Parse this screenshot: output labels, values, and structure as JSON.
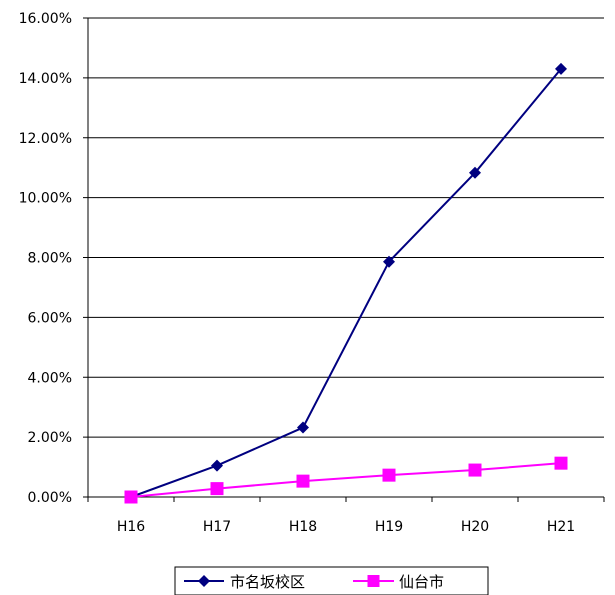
{
  "chart_data": {
    "type": "line",
    "categories": [
      "H16",
      "H17",
      "H18",
      "H19",
      "H20",
      "H21"
    ],
    "ylim": [
      0,
      0.16
    ],
    "ytick_values": [
      0,
      0.02,
      0.04,
      0.06,
      0.08,
      0.1,
      0.12,
      0.14,
      0.16
    ],
    "ytick_labels": [
      "0.00%",
      "2.00%",
      "4.00%",
      "6.00%",
      "8.00%",
      "10.00%",
      "12.00%",
      "14.00%",
      "16.00%"
    ],
    "grid": true,
    "legend_position": "bottom",
    "series": [
      {
        "name": "市名坂校区",
        "values": [
          0.0,
          0.0105,
          0.0232,
          0.0786,
          0.1083,
          0.143
        ],
        "color": "#000080",
        "marker": "diamond"
      },
      {
        "name": "仙台市",
        "values": [
          0.0,
          0.0028,
          0.0053,
          0.0073,
          0.009,
          0.0113
        ],
        "color": "#ff00ff",
        "marker": "square"
      }
    ]
  }
}
